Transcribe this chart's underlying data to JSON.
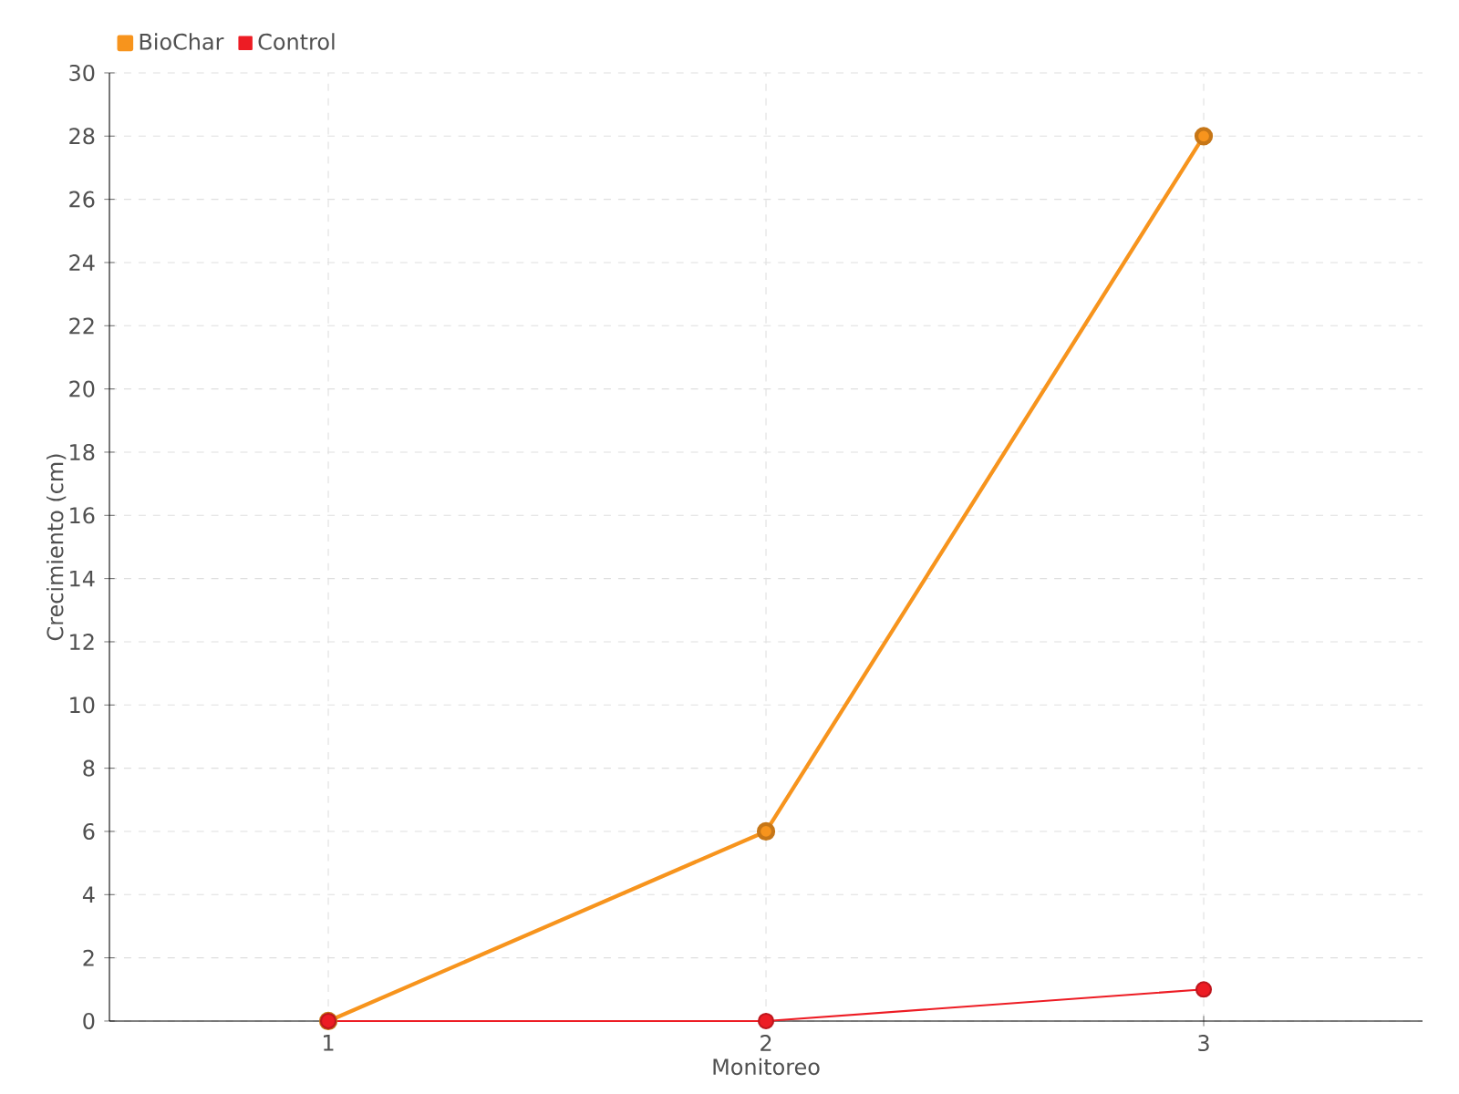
{
  "chart_data": {
    "type": "line",
    "xlabel": "Monitoreo",
    "ylabel": "Crecimiento (cm)",
    "categories": [
      "1",
      "2",
      "3"
    ],
    "series": [
      {
        "name": "BioChar",
        "color": "#f7941d",
        "values": [
          0,
          6,
          28
        ]
      },
      {
        "name": "Control",
        "color": "#ed1c24",
        "values": [
          0,
          0,
          1
        ]
      }
    ],
    "ylim": [
      0,
      30
    ],
    "yticks": [
      0,
      2,
      4,
      6,
      8,
      10,
      12,
      14,
      16,
      18,
      20,
      22,
      24,
      26,
      28,
      30
    ],
    "grid": true,
    "legend": "top left",
    "marker": "circle",
    "line_style": "solid"
  }
}
